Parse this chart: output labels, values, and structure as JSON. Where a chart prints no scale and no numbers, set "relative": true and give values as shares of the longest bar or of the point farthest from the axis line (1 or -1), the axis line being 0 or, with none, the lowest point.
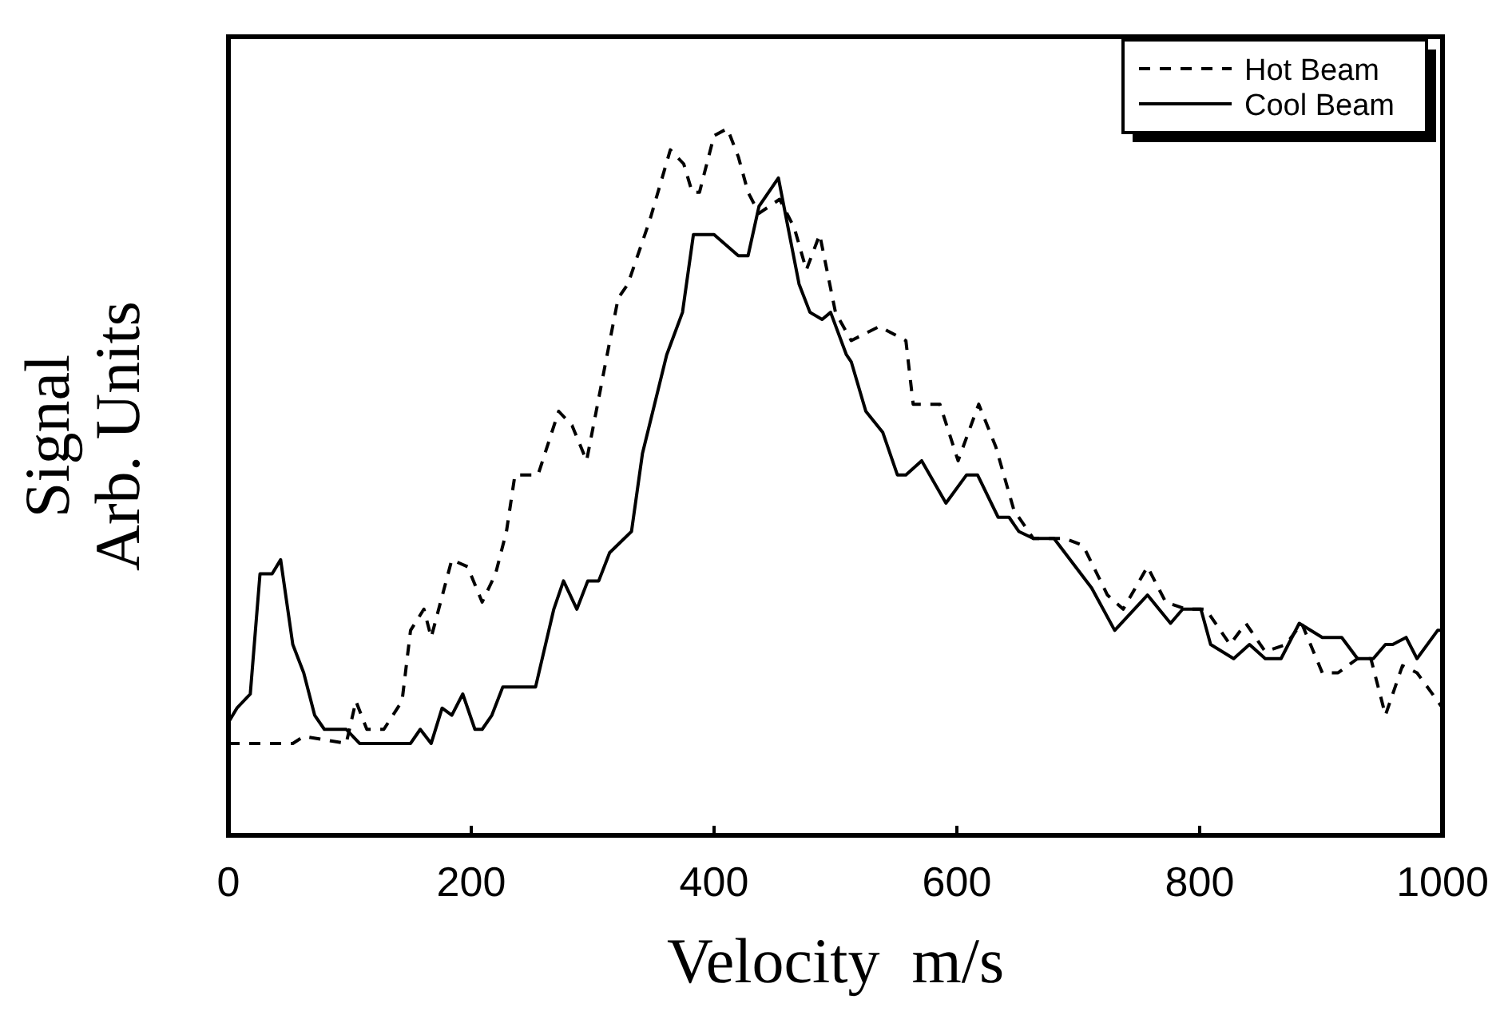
{
  "chart_data": {
    "type": "line",
    "relative": true,
    "xlabel": "Velocity  m/s",
    "ylabel": "Signal\nArb. Units",
    "xlim": [
      0,
      1000
    ],
    "xticks": [
      0,
      200,
      400,
      600,
      800,
      1000
    ],
    "legend": "top right",
    "grid": false,
    "series": [
      {
        "name": "Hot Beam",
        "color": "#000000",
        "line_style": "dashed",
        "x": [
          0,
          53,
          62,
          97,
          105,
          114,
          128,
          143,
          150,
          161,
          167,
          184,
          197,
          209,
          220,
          229,
          236,
          255,
          272,
          283,
          295,
          321,
          329,
          347,
          364,
          375,
          382,
          388,
          400,
          411,
          420,
          428,
          437,
          454,
          466,
          476,
          487,
          500,
          513,
          536,
          558,
          564,
          586,
          601,
          618,
          632,
          647,
          663,
          689,
          704,
          724,
          737,
          757,
          772,
          789,
          805,
          825,
          838,
          854,
          871,
          884,
          901,
          914,
          930,
          941,
          953,
          967,
          979,
          996,
          1000
        ],
        "values": [
          0.13,
          0.13,
          0.14,
          0.13,
          0.19,
          0.15,
          0.15,
          0.19,
          0.29,
          0.32,
          0.28,
          0.39,
          0.38,
          0.33,
          0.37,
          0.43,
          0.51,
          0.51,
          0.6,
          0.58,
          0.53,
          0.76,
          0.78,
          0.87,
          0.97,
          0.95,
          0.91,
          0.91,
          0.99,
          1,
          0.96,
          0.91,
          0.88,
          0.9,
          0.86,
          0.8,
          0.85,
          0.74,
          0.7,
          0.72,
          0.7,
          0.61,
          0.61,
          0.53,
          0.61,
          0.55,
          0.46,
          0.42,
          0.42,
          0.41,
          0.34,
          0.32,
          0.38,
          0.33,
          0.32,
          0.32,
          0.27,
          0.3,
          0.26,
          0.27,
          0.3,
          0.23,
          0.23,
          0.25,
          0.25,
          0.17,
          0.24,
          0.23,
          0.19,
          0.18
        ]
      },
      {
        "name": "Cool Beam",
        "color": "#000000",
        "line_style": "solid",
        "x": [
          0,
          7,
          18,
          26,
          36,
          43,
          53,
          62,
          71,
          79,
          97,
          108,
          150,
          158,
          167,
          176,
          184,
          193,
          203,
          209,
          217,
          226,
          253,
          268,
          276,
          287,
          296,
          305,
          314,
          332,
          341,
          361,
          374,
          383,
          400,
          420,
          428,
          437,
          453,
          470,
          479,
          489,
          496,
          509,
          513,
          525,
          539,
          551,
          558,
          571,
          591,
          608,
          617,
          634,
          643,
          651,
          663,
          680,
          711,
          730,
          757,
          776,
          786,
          801,
          809,
          828,
          841,
          854,
          867,
          882,
          901,
          917,
          930,
          943,
          953,
          959,
          970,
          979,
          996,
          1000
        ],
        "values": [
          0.16,
          0.18,
          0.2,
          0.37,
          0.37,
          0.39,
          0.27,
          0.23,
          0.17,
          0.15,
          0.15,
          0.13,
          0.13,
          0.15,
          0.13,
          0.18,
          0.17,
          0.2,
          0.15,
          0.15,
          0.17,
          0.21,
          0.21,
          0.32,
          0.36,
          0.32,
          0.36,
          0.36,
          0.4,
          0.43,
          0.54,
          0.68,
          0.74,
          0.85,
          0.85,
          0.82,
          0.82,
          0.89,
          0.93,
          0.78,
          0.74,
          0.73,
          0.74,
          0.68,
          0.67,
          0.6,
          0.57,
          0.51,
          0.51,
          0.53,
          0.47,
          0.51,
          0.51,
          0.45,
          0.45,
          0.43,
          0.42,
          0.42,
          0.35,
          0.29,
          0.34,
          0.3,
          0.32,
          0.32,
          0.27,
          0.25,
          0.27,
          0.25,
          0.25,
          0.3,
          0.28,
          0.28,
          0.25,
          0.25,
          0.27,
          0.27,
          0.28,
          0.25,
          0.29,
          0.29
        ]
      }
    ]
  }
}
